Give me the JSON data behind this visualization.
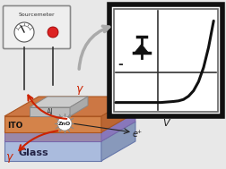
{
  "bg_color": "#e8e8e8",
  "panel_bg": "#ffffff",
  "panel_border": "#111111",
  "panel_inner_border": "#666666",
  "iv_curve_color": "#111111",
  "iv_x": [
    -2.0,
    -1.8,
    -1.5,
    -1.2,
    -1.0,
    -0.8,
    -0.5,
    -0.2,
    0.0,
    0.1,
    0.3,
    0.5,
    0.7,
    0.9,
    1.1,
    1.3,
    1.5,
    1.7,
    1.9
  ],
  "iv_y": [
    -0.03,
    -0.03,
    -0.03,
    -0.03,
    -0.03,
    -0.03,
    -0.03,
    -0.03,
    -0.01,
    0.0,
    0.02,
    0.05,
    0.12,
    0.28,
    0.55,
    1.0,
    1.7,
    2.7,
    4.0
  ],
  "diode_color": "#111111",
  "arrow_gray": "#999999",
  "sourcemeter_bg": "#eeeeee",
  "sourcemeter_border": "#888888",
  "device_orange": "#d4834a",
  "device_purple": "#8888cc",
  "device_gray_al": "#aaaaaa",
  "device_blue_glass": "#8899cc",
  "glass_light": "#aabbdd",
  "ito_color": "#b89050",
  "gamma_color": "#cc2200",
  "label_glass": "Glass",
  "label_ito": "ITO",
  "label_zno": "ZnO",
  "label_al": "Al",
  "label_sourcemeter": "Sourcemeter",
  "label_v": "V",
  "label_minus": "-",
  "label_gamma": "γ"
}
